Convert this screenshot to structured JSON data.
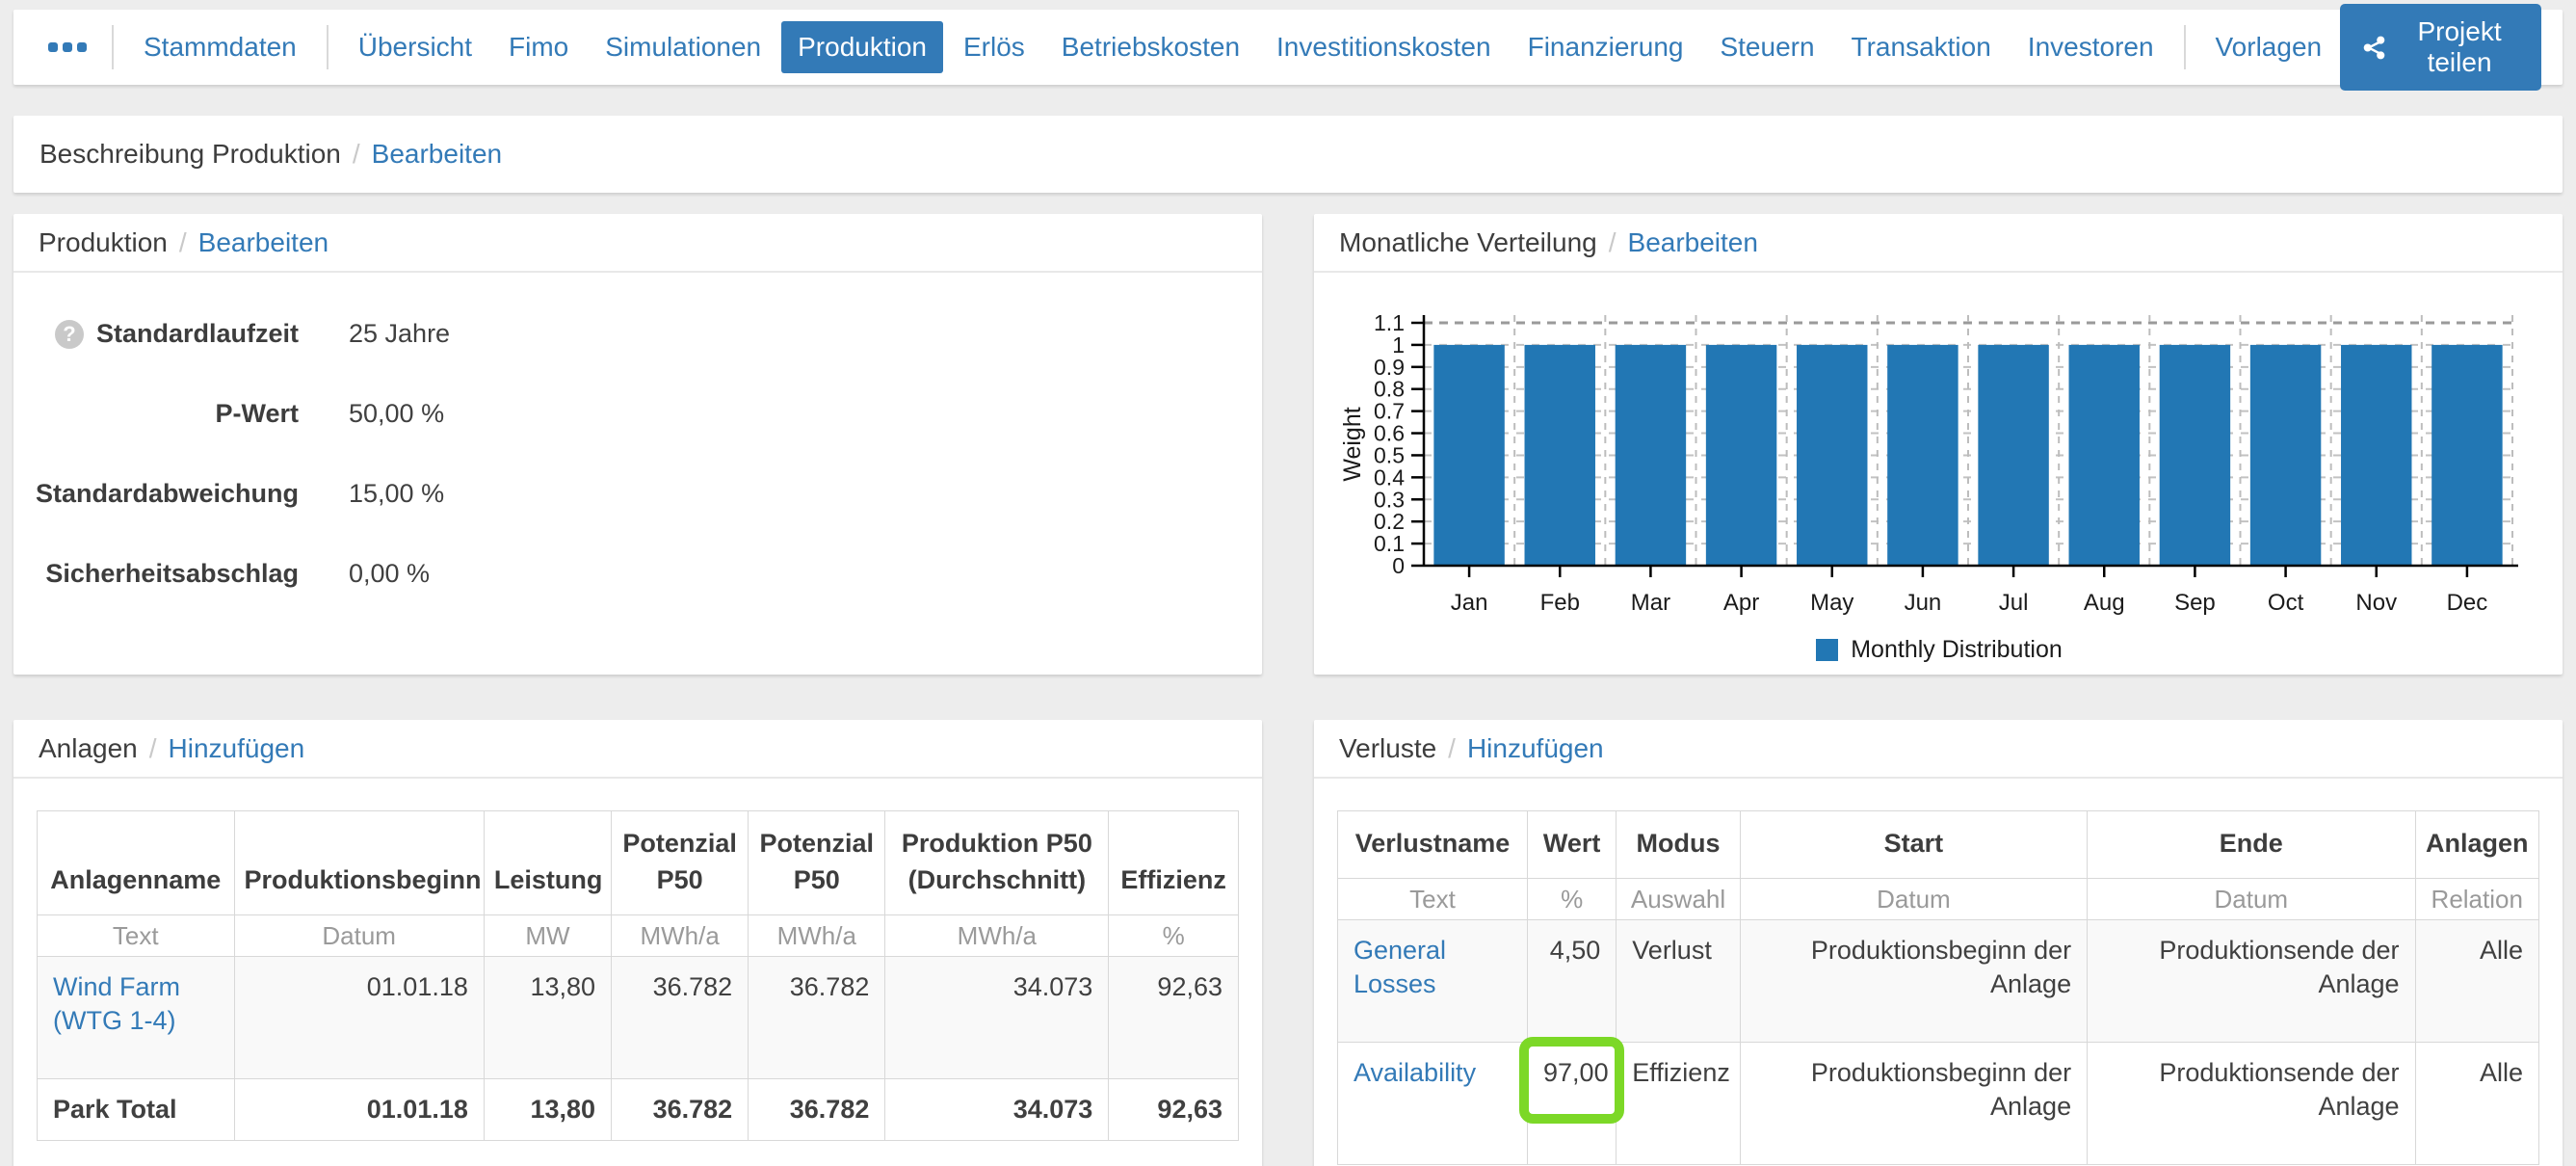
{
  "ui": {
    "slash": "/"
  },
  "nav": {
    "items": [
      {
        "label": "Stammdaten",
        "active": false,
        "sep_before": true
      },
      {
        "label": "Übersicht",
        "active": false,
        "sep_before": true
      },
      {
        "label": "Fimo",
        "active": false,
        "sep_before": false
      },
      {
        "label": "Simulationen",
        "active": false,
        "sep_before": false
      },
      {
        "label": "Produktion",
        "active": true,
        "sep_before": false
      },
      {
        "label": "Erlös",
        "active": false,
        "sep_before": false
      },
      {
        "label": "Betriebskosten",
        "active": false,
        "sep_before": false
      },
      {
        "label": "Investitionskosten",
        "active": false,
        "sep_before": false
      },
      {
        "label": "Finanzierung",
        "active": false,
        "sep_before": false
      },
      {
        "label": "Steuern",
        "active": false,
        "sep_before": false
      },
      {
        "label": "Transaktion",
        "active": false,
        "sep_before": false
      },
      {
        "label": "Investoren",
        "active": false,
        "sep_before": false
      },
      {
        "label": "Vorlagen",
        "active": false,
        "sep_before": true
      }
    ],
    "share_button_label": "Projekt teilen",
    "icons": {
      "ellipsis": "more-menu-icon",
      "share": "share-icon"
    }
  },
  "breadcrumb": {
    "title": "Beschreibung Produktion",
    "action": "Bearbeiten"
  },
  "production_panel": {
    "title": "Produktion",
    "action": "Bearbeiten",
    "help_glyph": "?",
    "fields": [
      {
        "label": "Standardlaufzeit",
        "value": "25 Jahre",
        "help": true
      },
      {
        "label": "P-Wert",
        "value": "50,00 %",
        "help": false
      },
      {
        "label": "Standardabweichung",
        "value": "15,00 %",
        "help": false
      },
      {
        "label": "Sicherheitsabschlag",
        "value": "0,00 %",
        "help": false
      }
    ]
  },
  "distribution_panel": {
    "title": "Monatliche Verteilung",
    "action": "Bearbeiten"
  },
  "chart_data": {
    "type": "bar",
    "categories": [
      "Jan",
      "Feb",
      "Mar",
      "Apr",
      "May",
      "Jun",
      "Jul",
      "Aug",
      "Sep",
      "Oct",
      "Nov",
      "Dec"
    ],
    "values": [
      1,
      1,
      1,
      1,
      1,
      1,
      1,
      1,
      1,
      1,
      1,
      1
    ],
    "title": "",
    "xlabel": "",
    "ylabel": "Weight",
    "ylim": [
      0,
      1.1
    ],
    "ytick_step": 0.1,
    "grid": true,
    "legend": [
      "Monthly Distribution"
    ],
    "legend_position": "bottom",
    "bar_color": "#2277b4"
  },
  "anlagen_panel": {
    "title": "Anlagen",
    "action": "Hinzufügen",
    "columns": [
      "Anlagenname",
      "Produktionsbeginn",
      "Leistung",
      "Potenzial P50",
      "Potenzial P50",
      "Produktion P50 (Durchschnitt)",
      "Effizienz"
    ],
    "units": [
      "Text",
      "Datum",
      "MW",
      "MWh/a",
      "MWh/a",
      "MWh/a",
      "%"
    ],
    "col_widths": [
      16.4,
      20.8,
      10.6,
      11.4,
      11.4,
      18.6,
      10.8
    ],
    "rows": [
      {
        "name": "Wind Farm (WTG 1-4)",
        "link": true,
        "bold": false,
        "values": [
          "01.01.18",
          "13,80",
          "36.782",
          "36.782",
          "34.073",
          "92,63"
        ]
      },
      {
        "name": "Park Total",
        "link": false,
        "bold": true,
        "values": [
          "01.01.18",
          "13,80",
          "36.782",
          "36.782",
          "34.073",
          "92,63"
        ]
      }
    ]
  },
  "verluste_panel": {
    "title": "Verluste",
    "action": "Hinzufügen",
    "columns": [
      "Verlustname",
      "Wert",
      "Modus",
      "Start",
      "Ende",
      "Anlagen"
    ],
    "units": [
      "Text",
      "%",
      "Auswahl",
      "Datum",
      "Datum",
      "Relation"
    ],
    "col_widths": [
      15.8,
      7.4,
      10.3,
      28.9,
      27.3,
      10.3
    ],
    "rows": [
      {
        "name": "General Losses",
        "wert": "4,50",
        "modus": "Verlust",
        "start": "Produktionsbeginn der Anlage",
        "ende": "Produktionsende der Anlage",
        "anlagen": "Alle",
        "highlight_wert": false
      },
      {
        "name": "Availability",
        "wert": "97,00",
        "modus": "Effizienz",
        "start": "Produktionsbeginn der Anlage",
        "ende": "Produktionsende der Anlage",
        "anlagen": "Alle",
        "highlight_wert": true
      }
    ]
  },
  "colors": {
    "accent_blue": "#337ab7",
    "bar_blue": "#2277b4",
    "highlight_green": "#7cd827",
    "page_background": "#ededed"
  }
}
